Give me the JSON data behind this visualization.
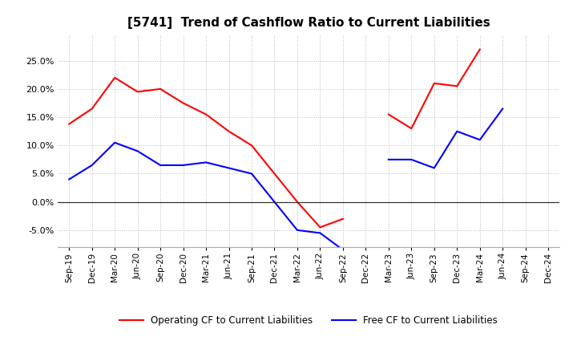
{
  "title": "[5741]  Trend of Cashflow Ratio to Current Liabilities",
  "x_labels": [
    "Sep-19",
    "Dec-19",
    "Mar-20",
    "Jun-20",
    "Sep-20",
    "Dec-20",
    "Mar-21",
    "Jun-21",
    "Sep-21",
    "Dec-21",
    "Mar-22",
    "Jun-22",
    "Sep-22",
    "Dec-22",
    "Mar-23",
    "Jun-23",
    "Sep-23",
    "Dec-23",
    "Mar-24",
    "Jun-24",
    "Sep-24",
    "Dec-24"
  ],
  "operating_cf": [
    0.138,
    0.165,
    0.22,
    0.195,
    0.2,
    0.175,
    0.155,
    0.125,
    0.1,
    0.05,
    0.0,
    -0.045,
    -0.03,
    null,
    0.155,
    0.13,
    0.21,
    0.205,
    0.27,
    null,
    null,
    null
  ],
  "free_cf": [
    0.04,
    0.065,
    0.105,
    0.09,
    0.065,
    0.065,
    0.07,
    0.06,
    0.05,
    0.0,
    -0.05,
    -0.055,
    -0.085,
    null,
    0.075,
    0.075,
    0.06,
    0.125,
    0.11,
    0.165,
    null,
    null
  ],
  "operating_cf_color": "#ff0000",
  "free_cf_color": "#0000ff",
  "ylim": [
    -0.08,
    0.295
  ],
  "yticks": [
    -0.05,
    0.0,
    0.05,
    0.1,
    0.15,
    0.2,
    0.25
  ],
  "legend_labels": [
    "Operating CF to Current Liabilities",
    "Free CF to Current Liabilities"
  ],
  "background_color": "#ffffff",
  "grid_color": "#bbbbbb"
}
